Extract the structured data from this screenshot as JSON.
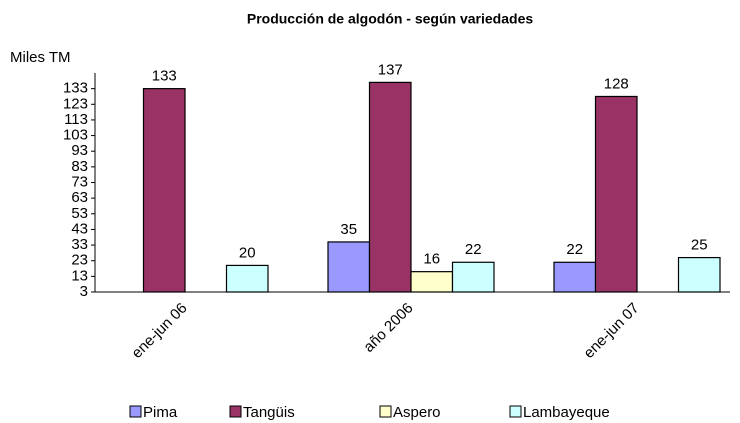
{
  "chart_data": {
    "type": "bar",
    "title": "Producción de algodón - según variedades",
    "y_label": "Miles TM",
    "categories": [
      "ene-jun 06",
      "año 2006",
      "ene-jun 07"
    ],
    "series": [
      {
        "name": "Pima",
        "color": "#9999ff",
        "values": [
          null,
          35,
          22
        ]
      },
      {
        "name": "Tangüis",
        "color": "#993366",
        "values": [
          133,
          137,
          128
        ]
      },
      {
        "name": "Aspero",
        "color": "#ffffcc",
        "values": [
          null,
          16,
          null
        ]
      },
      {
        "name": "Lambayeque",
        "color": "#ccffff",
        "values": [
          20,
          22,
          25
        ]
      }
    ],
    "ylim": [
      3,
      143
    ],
    "yticks": [
      3,
      13,
      23,
      33,
      43,
      53,
      63,
      73,
      83,
      93,
      103,
      113,
      123,
      133
    ],
    "grid": false,
    "legend": "bottom"
  }
}
